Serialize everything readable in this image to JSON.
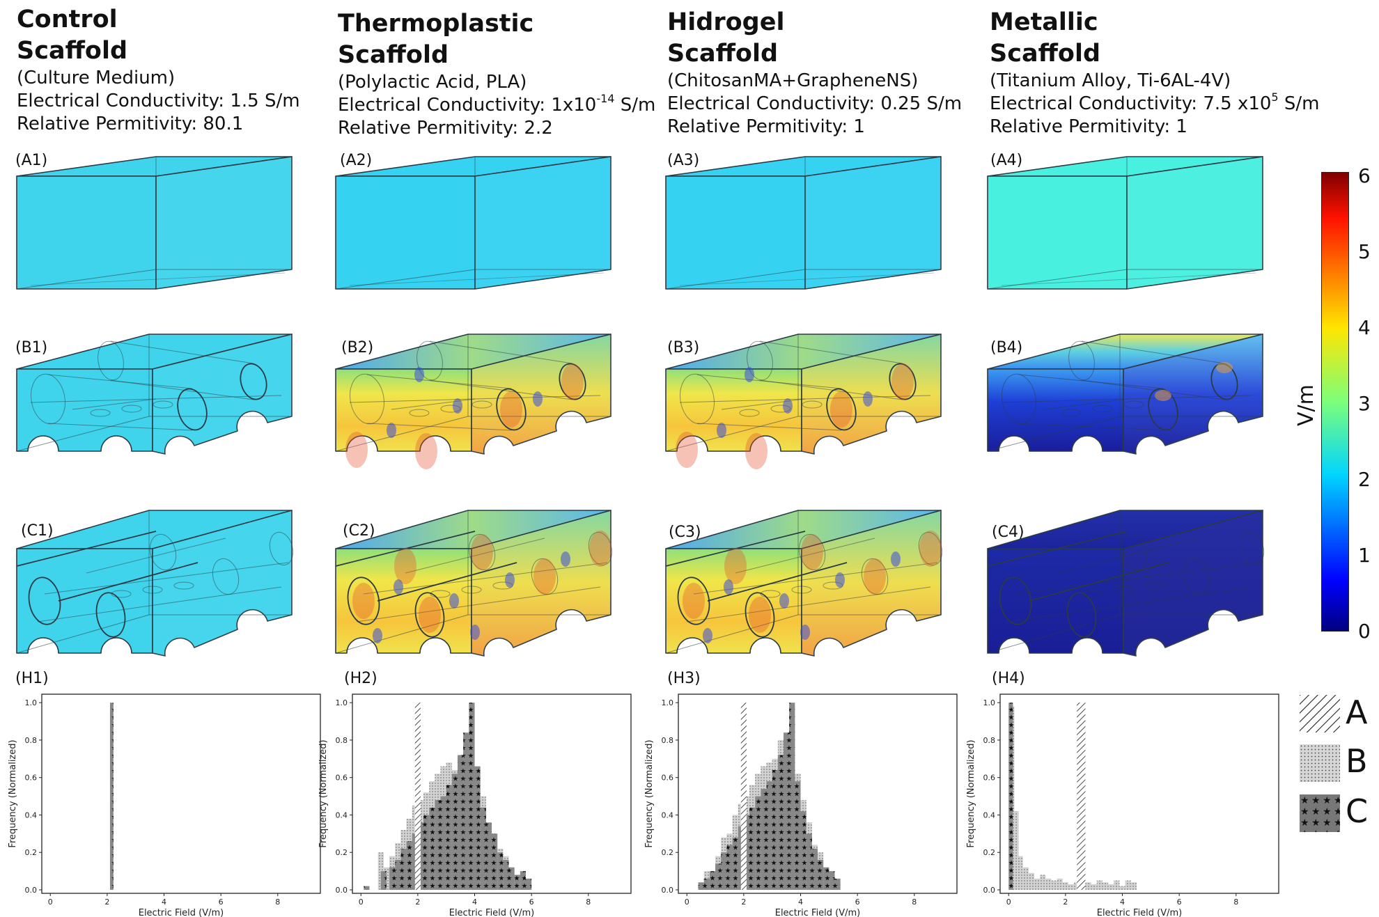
{
  "columns": [
    {
      "title1": "Control",
      "title2": "Scaffold",
      "subtitle": "(Culture Medium)",
      "cond_pre": "Electrical Conductivity: 1.5 S/m",
      "cond_exp": "",
      "cond_post": "",
      "perm": "Relative Permitivity: 80.1",
      "labels": {
        "a": "(A1)",
        "b": "(B1)",
        "c": "(C1)",
        "h": "(H1)"
      },
      "scheme": "control"
    },
    {
      "title1": "Thermoplastic",
      "title2": "Scaffold",
      "subtitle": "(Polylactic Acid, PLA)",
      "cond_pre": "Electrical Conductivity: 1x10",
      "cond_exp": "-14",
      "cond_post": " S/m",
      "perm": "Relative Permitivity: 2.2",
      "labels": {
        "a": "(A2)",
        "b": "(B2)",
        "c": "(C2)",
        "h": "(H2)"
      },
      "scheme": "warm"
    },
    {
      "title1": "Hidrogel",
      "title2": "Scaffold",
      "subtitle": "(ChitosanMA+GrapheneNS)",
      "cond_pre": "Electrical Conductivity: 0.25 S/m",
      "cond_exp": "",
      "cond_post": "",
      "perm": "Relative Permitivity: 1",
      "labels": {
        "a": "(A3)",
        "b": "(B3)",
        "c": "(C3)",
        "h": "(H3)"
      },
      "scheme": "warm"
    },
    {
      "title1": "Metallic",
      "title2": "Scaffold",
      "subtitle": "(Titanium Alloy, Ti-6AL-4V)",
      "cond_pre": "Electrical Conductivity: 7.5 x10",
      "cond_exp": "5",
      "cond_post": " S/m",
      "perm": "Relative Permitivity: 1",
      "labels": {
        "a": "(A4)",
        "b": "(B4)",
        "c": "(C4)",
        "h": "(H4)"
      },
      "scheme": "metal"
    }
  ],
  "colorbar": {
    "unit": "V/m",
    "ticks": [
      "6",
      "5",
      "4",
      "3",
      "2",
      "1",
      "0"
    ]
  },
  "legend": [
    {
      "label": "A",
      "pattern": "hatch"
    },
    {
      "label": "B",
      "pattern": "dots"
    },
    {
      "label": "C",
      "pattern": "stars"
    }
  ],
  "histograms": {
    "xlabel": "Electric Field (V/m)",
    "ylabel": "Frequency (Normalized)",
    "xticks": [
      "0",
      "2",
      "4",
      "6",
      "8"
    ],
    "yticks": [
      "0.0",
      "0.2",
      "0.4",
      "0.6",
      "0.8",
      "1.0"
    ]
  },
  "colors": {
    "control": "#3fd4ec",
    "warm_a": "#36d2f2",
    "metal_a": "#48f0df",
    "metal_dark": "#1a1e9a"
  }
}
